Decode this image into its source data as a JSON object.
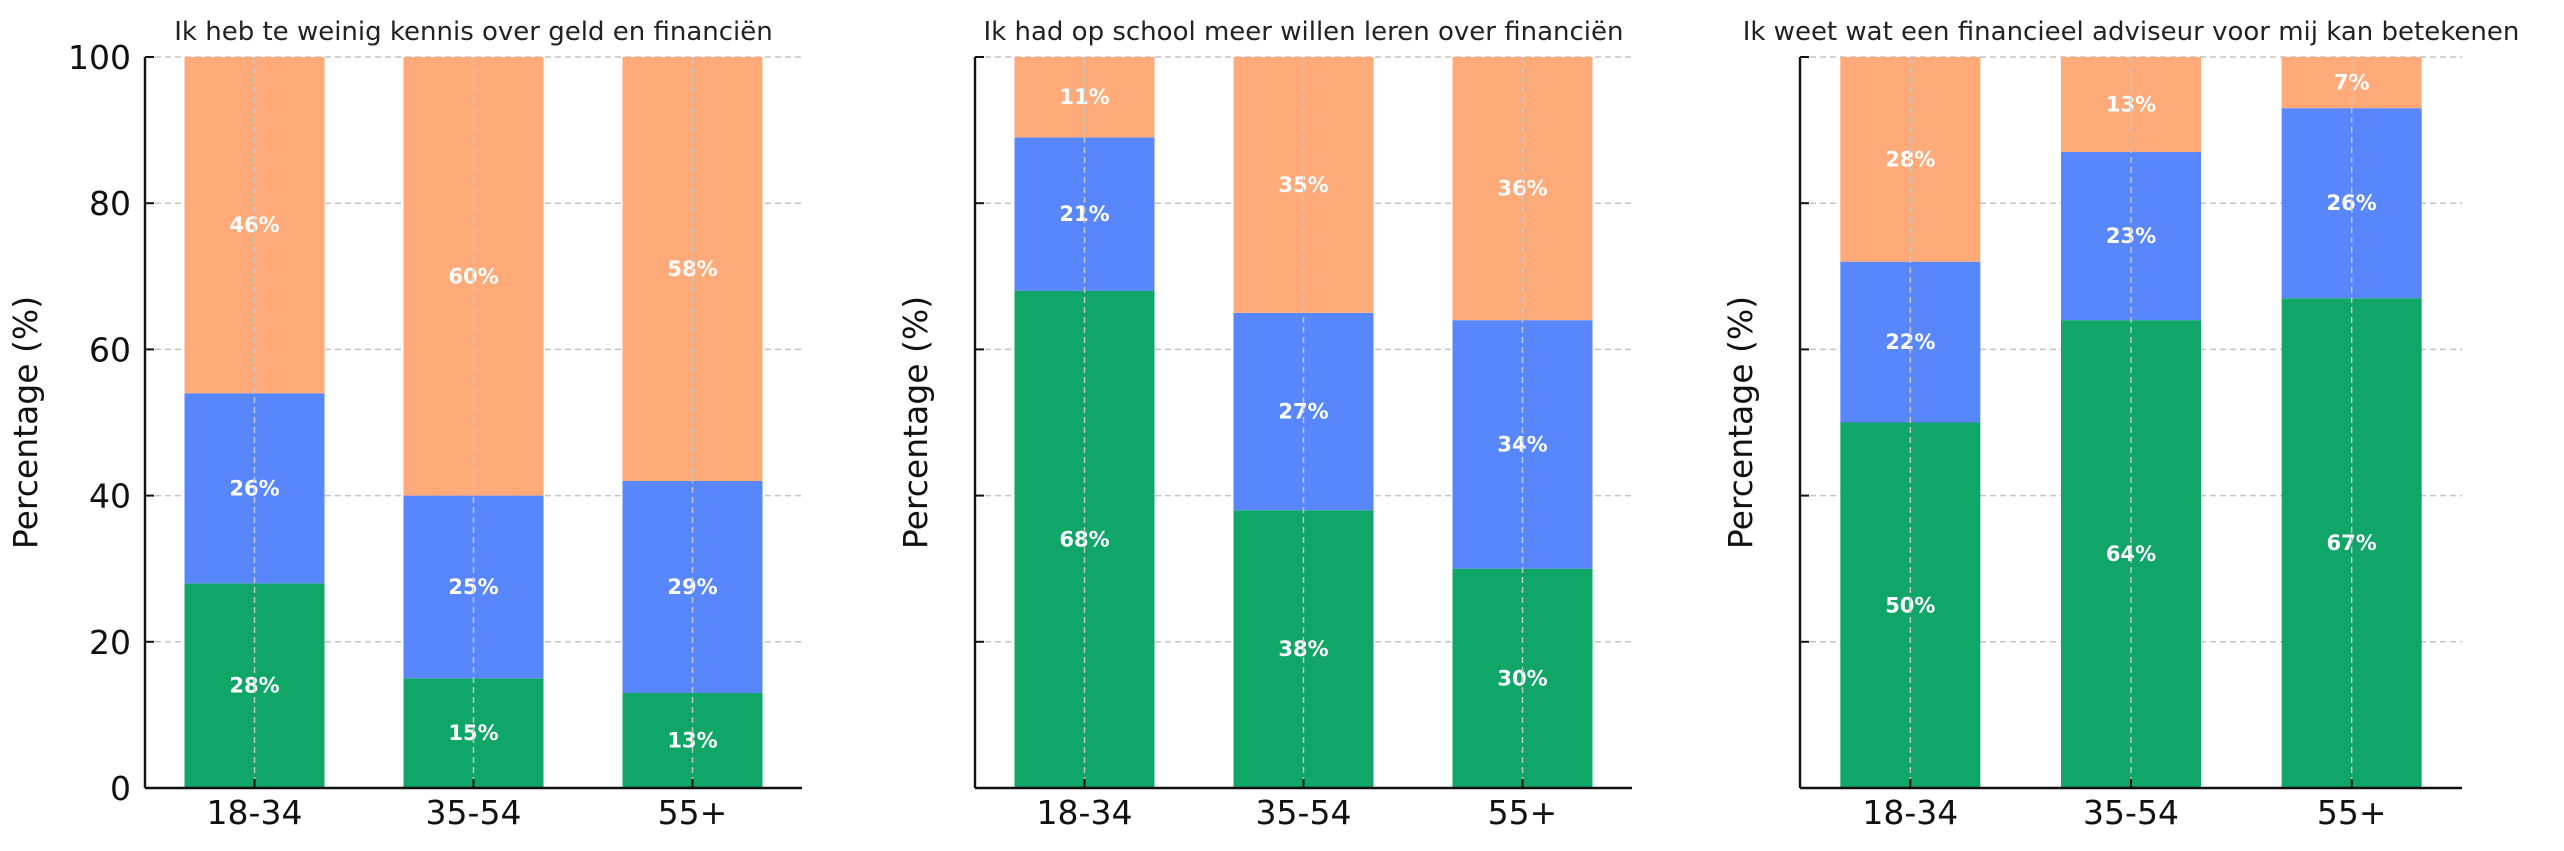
{
  "chart_data": [
    {
      "type": "bar",
      "stacked": true,
      "title": "Ik heb te weinig kennis over geld en financiën",
      "ylabel": "Percentage (%)",
      "categories": [
        "18-34",
        "35-54",
        "55+"
      ],
      "ylim": [
        0,
        100
      ],
      "yticks": [
        "0",
        "20",
        "40",
        "60",
        "80",
        "100"
      ],
      "show_ytick_labels": true,
      "grid": true,
      "series": [
        {
          "values": [
            28,
            15,
            13
          ],
          "labels": [
            "28%",
            "15%",
            "13%"
          ],
          "color": "#0fa667"
        },
        {
          "values": [
            26,
            25,
            29
          ],
          "labels": [
            "26%",
            "25%",
            "29%"
          ],
          "color": "#5886fd"
        },
        {
          "values": [
            46,
            60,
            58
          ],
          "labels": [
            "46%",
            "60%",
            "58%"
          ],
          "color": "#ffaa78"
        }
      ]
    },
    {
      "type": "bar",
      "stacked": true,
      "title": "Ik had op school meer willen leren over financiën",
      "ylabel": "Percentage (%)",
      "categories": [
        "18-34",
        "35-54",
        "55+"
      ],
      "ylim": [
        0,
        100
      ],
      "yticks": [
        "0",
        "20",
        "40",
        "60",
        "80",
        "100"
      ],
      "show_ytick_labels": false,
      "grid": true,
      "series": [
        {
          "values": [
            68,
            38,
            30
          ],
          "labels": [
            "68%",
            "38%",
            "30%"
          ],
          "color": "#0fa667"
        },
        {
          "values": [
            21,
            27,
            34
          ],
          "labels": [
            "21%",
            "27%",
            "34%"
          ],
          "color": "#5886fd"
        },
        {
          "values": [
            11,
            35,
            36
          ],
          "labels": [
            "11%",
            "35%",
            "36%"
          ],
          "color": "#ffaa78"
        }
      ]
    },
    {
      "type": "bar",
      "stacked": true,
      "title": "Ik weet wat een financieel adviseur voor mij kan betekenen",
      "ylabel": "Percentage (%)",
      "categories": [
        "18-34",
        "35-54",
        "55+"
      ],
      "ylim": [
        0,
        100
      ],
      "yticks": [
        "0",
        "20",
        "40",
        "60",
        "80",
        "100"
      ],
      "show_ytick_labels": false,
      "grid": true,
      "series": [
        {
          "values": [
            50,
            64,
            67
          ],
          "labels": [
            "50%",
            "64%",
            "67%"
          ],
          "color": "#0fa667"
        },
        {
          "values": [
            22,
            23,
            26
          ],
          "labels": [
            "22%",
            "23%",
            "26%"
          ],
          "color": "#5886fd"
        },
        {
          "values": [
            28,
            13,
            7
          ],
          "labels": [
            "28%",
            "13%",
            "7%"
          ],
          "color": "#ffaa78"
        }
      ]
    }
  ]
}
